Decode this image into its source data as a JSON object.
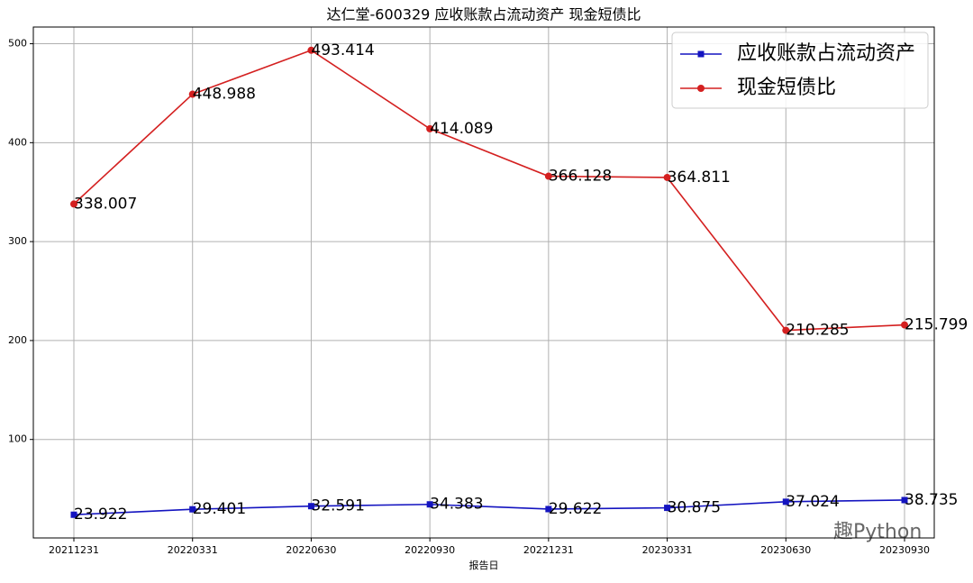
{
  "chart_data": {
    "type": "line",
    "title": "达仁堂-600329 应收账款占流动资产 现金短债比",
    "x_label": "报告日",
    "categories": [
      "20211231",
      "20220331",
      "20220630",
      "20220930",
      "20221231",
      "20230331",
      "20230630",
      "20230930"
    ],
    "series": [
      {
        "name": "应收账款占流动资产",
        "color": "#1414c0",
        "marker": "square",
        "values": [
          23.922,
          29.401,
          32.591,
          34.383,
          29.622,
          30.875,
          37.024,
          38.735
        ]
      },
      {
        "name": "现金短债比",
        "color": "#d42020",
        "marker": "circle",
        "values": [
          338.007,
          448.988,
          493.414,
          414.089,
          366.128,
          364.811,
          210.285,
          215.799
        ]
      }
    ],
    "ylim": [
      0.45,
      516.89
    ],
    "yticks": [
      100,
      200,
      300,
      400,
      500
    ],
    "grid": true,
    "legend": "upper right",
    "watermark": "趣Python"
  }
}
